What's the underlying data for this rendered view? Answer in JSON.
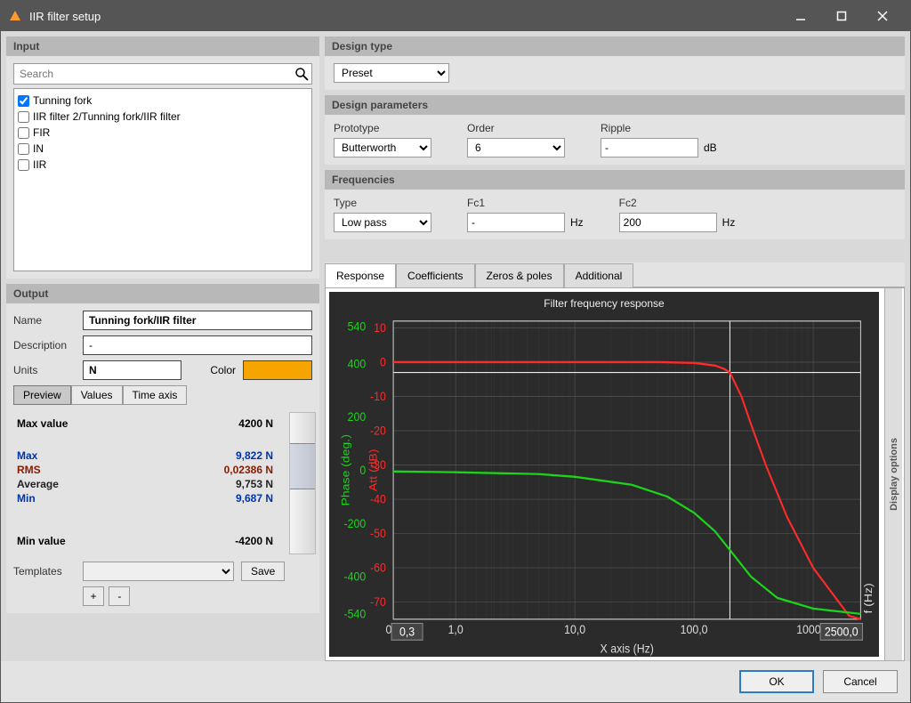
{
  "window": {
    "title": "IIR filter setup"
  },
  "input": {
    "header": "Input",
    "search_placeholder": "Search",
    "items": [
      {
        "label": "Tunning fork",
        "checked": true
      },
      {
        "label": "IIR filter 2/Tunning fork/IIR filter",
        "checked": false
      },
      {
        "label": "FIR",
        "checked": false
      },
      {
        "label": "IN",
        "checked": false
      },
      {
        "label": "IIR",
        "checked": false
      }
    ]
  },
  "output": {
    "header": "Output",
    "name_label": "Name",
    "name_value": "Tunning fork/IIR filter",
    "desc_label": "Description",
    "desc_value": "-",
    "units_label": "Units",
    "units_value": "N",
    "color_label": "Color",
    "color_hex": "#f5a400",
    "view_tabs": [
      "Preview",
      "Values",
      "Time axis"
    ],
    "maxvalue_label": "Max value",
    "maxvalue": "4200 N",
    "minvalue_label": "Min value",
    "minvalue": "-4200 N",
    "max_label": "Max",
    "max": "9,822 N",
    "rms_label": "RMS",
    "rms": "0,02386 N",
    "avg_label": "Average",
    "avg": "9,753 N",
    "min_label": "Min",
    "min": "9,687 N",
    "templates_label": "Templates",
    "save_label": "Save",
    "add_label": "+",
    "remove_label": "-"
  },
  "design": {
    "type_header": "Design type",
    "type_value": "Preset",
    "params_header": "Design parameters",
    "proto_label": "Prototype",
    "proto_value": "Butterworth",
    "order_label": "Order",
    "order_value": "6",
    "ripple_label": "Ripple",
    "ripple_value": "-",
    "ripple_unit": "dB",
    "freq_header": "Frequencies",
    "ftype_label": "Type",
    "ftype_value": "Low pass",
    "fc1_label": "Fc1",
    "fc1_value": "-",
    "fc1_unit": "Hz",
    "fc2_label": "Fc2",
    "fc2_value": "200",
    "fc2_unit": "Hz"
  },
  "chart_tabs": [
    "Response",
    "Coefficients",
    "Zeros & poles",
    "Additional"
  ],
  "chart": {
    "title": "Filter frequency response",
    "x_label": "X axis (Hz)",
    "x_ticks": [
      "0,3",
      "1,0",
      "10,0",
      "100,0",
      "1000,0"
    ],
    "x_range_log": [
      -0.523,
      3.398
    ],
    "x_min_box": "0,3",
    "x_max_box": "2500,0",
    "y1_label": "Att (dB)",
    "y1_color": "#ff2a2a",
    "y1_ticks": [
      10,
      0,
      -10,
      -20,
      -30,
      -40,
      -50,
      -60,
      -70
    ],
    "y1_range": [
      -75,
      12
    ],
    "y2_label": "Phase (deg.)",
    "y2_color": "#1bd41b",
    "y2_ticks": [
      540,
      400,
      200,
      0,
      -200,
      -400,
      -540
    ],
    "y2_range": [
      -560,
      560
    ],
    "freq_label": "f (Hz)",
    "att_curve": [
      [
        0.3,
        0
      ],
      [
        1,
        0
      ],
      [
        10,
        0
      ],
      [
        50,
        0
      ],
      [
        100,
        -0.2
      ],
      [
        150,
        -1
      ],
      [
        180,
        -2
      ],
      [
        200,
        -3
      ],
      [
        250,
        -10
      ],
      [
        300,
        -18
      ],
      [
        400,
        -30
      ],
      [
        600,
        -45
      ],
      [
        1000,
        -60
      ],
      [
        2000,
        -74
      ],
      [
        2500,
        -75
      ]
    ],
    "phase_curve": [
      [
        0.3,
        -5
      ],
      [
        1,
        -8
      ],
      [
        5,
        -15
      ],
      [
        10,
        -25
      ],
      [
        30,
        -55
      ],
      [
        60,
        -100
      ],
      [
        100,
        -160
      ],
      [
        150,
        -230
      ],
      [
        200,
        -300
      ],
      [
        300,
        -400
      ],
      [
        500,
        -480
      ],
      [
        1000,
        -520
      ],
      [
        2500,
        -540
      ]
    ],
    "cursor_freq": 200,
    "bg": "#2b2b2b",
    "grid": "#555",
    "axis": "#ccc",
    "text": "#ddd"
  },
  "display_options_label": "Display options",
  "footer": {
    "ok": "OK",
    "cancel": "Cancel"
  }
}
